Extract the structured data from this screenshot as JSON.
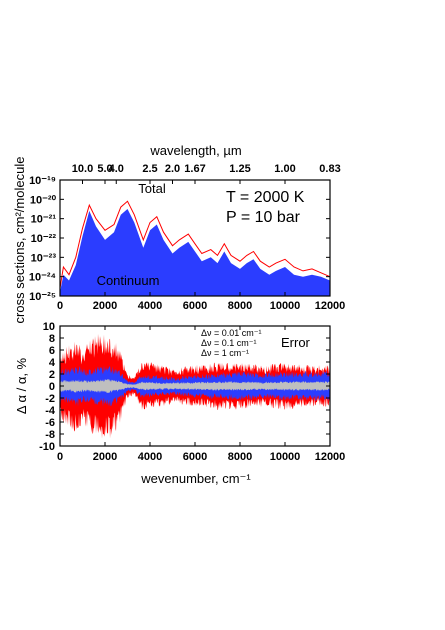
{
  "chart_data": [
    {
      "type": "area",
      "top_axis": {
        "label": "wavelength, µm",
        "ticks": [
          {
            "text": "10.0",
            "wavenumber": 1000
          },
          {
            "text": "5.0",
            "wavenumber": 2000
          },
          {
            "text": "4.0",
            "wavenumber": 2500
          },
          {
            "text": "2.5",
            "wavenumber": 4000
          },
          {
            "text": "2.0",
            "wavenumber": 5000
          },
          {
            "text": "1.67",
            "wavenumber": 6000
          },
          {
            "text": "1.25",
            "wavenumber": 8000
          },
          {
            "text": "1.00",
            "wavenumber": 10000
          },
          {
            "text": "0.83",
            "wavenumber": 12000
          }
        ]
      },
      "xlabel": "",
      "ylabel": "cross sections, cm²/molecule",
      "xlim": [
        0,
        12000
      ],
      "ylim_log10": [
        -25,
        -19
      ],
      "x_ticks": [
        "0",
        "2000",
        "4000",
        "6000",
        "8000",
        "10000",
        "12000"
      ],
      "y_ticks": [
        "10⁻¹⁹",
        "10⁻²⁰",
        "10⁻²¹",
        "10⁻²²",
        "10⁻²³",
        "10⁻²⁴",
        "10⁻²⁵"
      ],
      "annotations": [
        "T = 2000 K",
        "P = 10 bar"
      ],
      "series": [
        {
          "name": "Total",
          "color": "#ff0000",
          "x": [
            0,
            150,
            400,
            700,
            1000,
            1300,
            1600,
            2000,
            2400,
            2700,
            3000,
            3300,
            3700,
            4000,
            4300,
            4600,
            5000,
            5300,
            5700,
            6000,
            6300,
            6700,
            7000,
            7300,
            7600,
            8000,
            8300,
            8600,
            8900,
            9300,
            9600,
            10000,
            10400,
            10800,
            11200,
            11600,
            12000
          ],
          "log10_values": [
            -24.6,
            -23.5,
            -23.9,
            -23.0,
            -21.5,
            -20.3,
            -21.0,
            -21.6,
            -21.3,
            -20.4,
            -20.1,
            -20.8,
            -22.1,
            -21.2,
            -20.9,
            -21.7,
            -22.4,
            -22.1,
            -21.8,
            -22.3,
            -22.8,
            -22.6,
            -22.9,
            -22.3,
            -22.9,
            -23.2,
            -22.9,
            -22.7,
            -23.2,
            -23.5,
            -23.3,
            -23.1,
            -23.5,
            -23.7,
            -23.6,
            -23.8,
            -24.0
          ]
        },
        {
          "name": "Continuum",
          "color": "#2b3dff",
          "x": [
            0,
            150,
            400,
            700,
            1000,
            1300,
            1600,
            2000,
            2400,
            2700,
            3000,
            3300,
            3700,
            4000,
            4300,
            4600,
            5000,
            5300,
            5700,
            6000,
            6300,
            6700,
            7000,
            7300,
            7600,
            8000,
            8300,
            8600,
            8900,
            9300,
            9600,
            10000,
            10400,
            10800,
            11200,
            11600,
            12000
          ],
          "log10_values": [
            -24.8,
            -23.9,
            -24.2,
            -23.4,
            -21.9,
            -20.6,
            -21.4,
            -22.1,
            -21.7,
            -20.8,
            -20.5,
            -21.2,
            -22.5,
            -21.6,
            -21.3,
            -22.1,
            -22.8,
            -22.5,
            -22.2,
            -22.7,
            -23.2,
            -23.0,
            -23.3,
            -22.7,
            -23.3,
            -23.6,
            -23.3,
            -23.1,
            -23.6,
            -23.9,
            -23.7,
            -23.5,
            -23.9,
            -24.0,
            -23.9,
            -24.0,
            -24.2
          ]
        }
      ]
    },
    {
      "type": "area",
      "xlabel": "wevenumber, cm⁻¹",
      "ylabel": "Δ α / α, %",
      "xlim": [
        0,
        12000
      ],
      "ylim": [
        -10,
        10
      ],
      "x_ticks": [
        "0",
        "2000",
        "4000",
        "6000",
        "8000",
        "10000",
        "12000"
      ],
      "y_ticks": [
        "10",
        "8",
        "6",
        "4",
        "2",
        "0",
        "-2",
        "-4",
        "-6",
        "-8",
        "-10"
      ],
      "annotations": [
        "Error"
      ],
      "series": [
        {
          "name": "Δν = 0.01 cm⁻¹",
          "color": "#ff0000",
          "x": [
            0,
            400,
            800,
            1000,
            1400,
            1800,
            2200,
            2600,
            3000,
            3300,
            3600,
            4000,
            5000,
            6000,
            7000,
            8000,
            9000,
            10000,
            11000,
            12000
          ],
          "amplitude_pct": [
            6,
            7,
            8,
            6,
            8,
            9,
            9,
            7,
            2,
            1.5,
            4,
            4,
            3,
            3.5,
            4,
            4,
            3.5,
            4,
            3.5,
            3.5
          ]
        },
        {
          "name": "Δν = 0.1 cm⁻¹",
          "color": "#2b3dff",
          "x": [
            0,
            400,
            800,
            1000,
            1400,
            1800,
            2200,
            2600,
            3000,
            3300,
            3600,
            4000,
            5000,
            6000,
            7000,
            8000,
            9000,
            10000,
            11000,
            12000
          ],
          "amplitude_pct": [
            3,
            3,
            3.5,
            3,
            3,
            3.5,
            3.5,
            3,
            1,
            0.8,
            2,
            2,
            1.5,
            2,
            2.2,
            2.5,
            2.2,
            2.5,
            2.5,
            2.5
          ]
        },
        {
          "name": "Δν = 1 cm⁻¹",
          "color": "#bfbfbf",
          "x": [
            0,
            400,
            800,
            1000,
            1400,
            1800,
            2200,
            2600,
            3000,
            3300,
            3600,
            4000,
            5000,
            6000,
            7000,
            8000,
            9000,
            10000,
            11000,
            12000
          ],
          "amplitude_pct": [
            1,
            1,
            1.2,
            1,
            1,
            1.2,
            1.2,
            1,
            0.4,
            0.3,
            0.7,
            0.7,
            0.6,
            0.7,
            0.8,
            0.8,
            0.7,
            0.8,
            0.8,
            0.8
          ]
        }
      ]
    }
  ]
}
